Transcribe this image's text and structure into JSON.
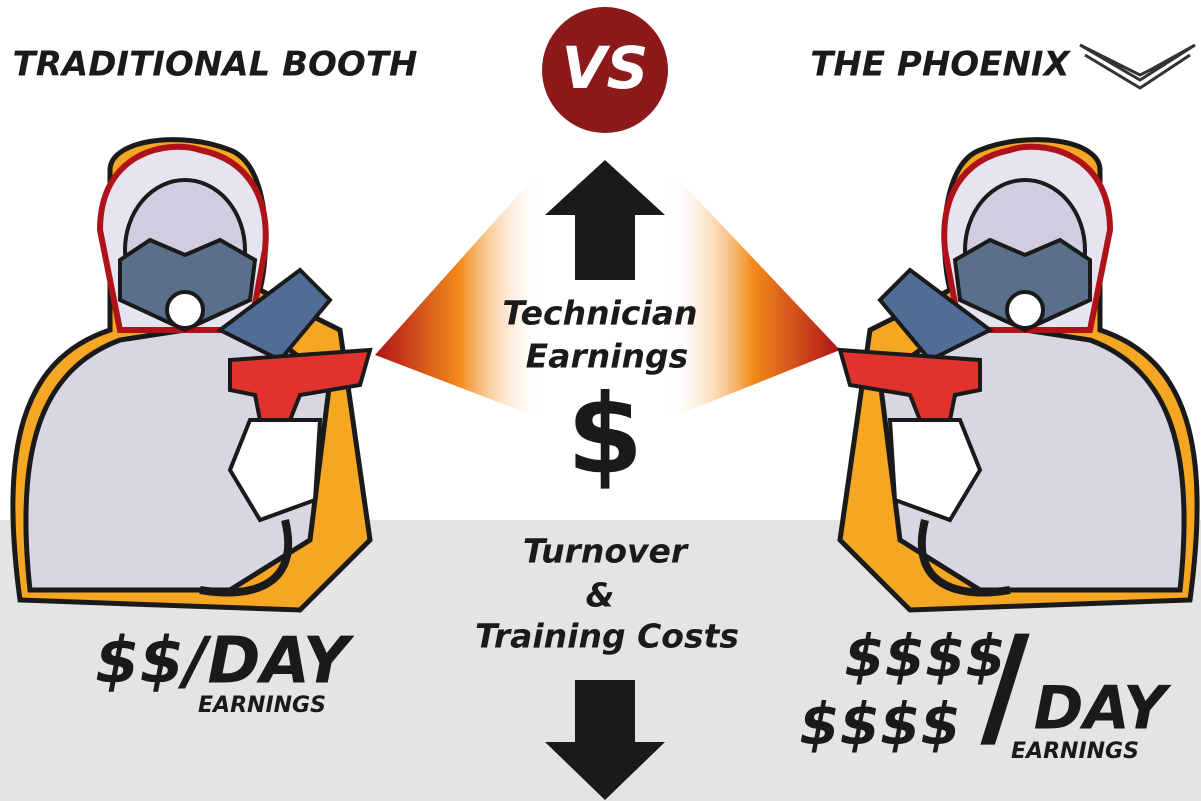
{
  "header": {
    "left_title": "TRADITIONAL BOOTH",
    "center_badge": "VS",
    "right_title": "THE PHOENIX"
  },
  "center": {
    "upper_label": [
      "Technician",
      "Earnings"
    ],
    "symbol": "$",
    "lower_label": [
      "Turnover",
      "&",
      "Training Costs"
    ]
  },
  "left_panel": {
    "earnings": "$$/DAY",
    "caption": "EARNINGS"
  },
  "right_panel": {
    "earnings_lines": [
      "$$$$",
      "$$$$"
    ],
    "separator": "/",
    "unit": "DAY",
    "caption": "EARNINGS"
  }
}
